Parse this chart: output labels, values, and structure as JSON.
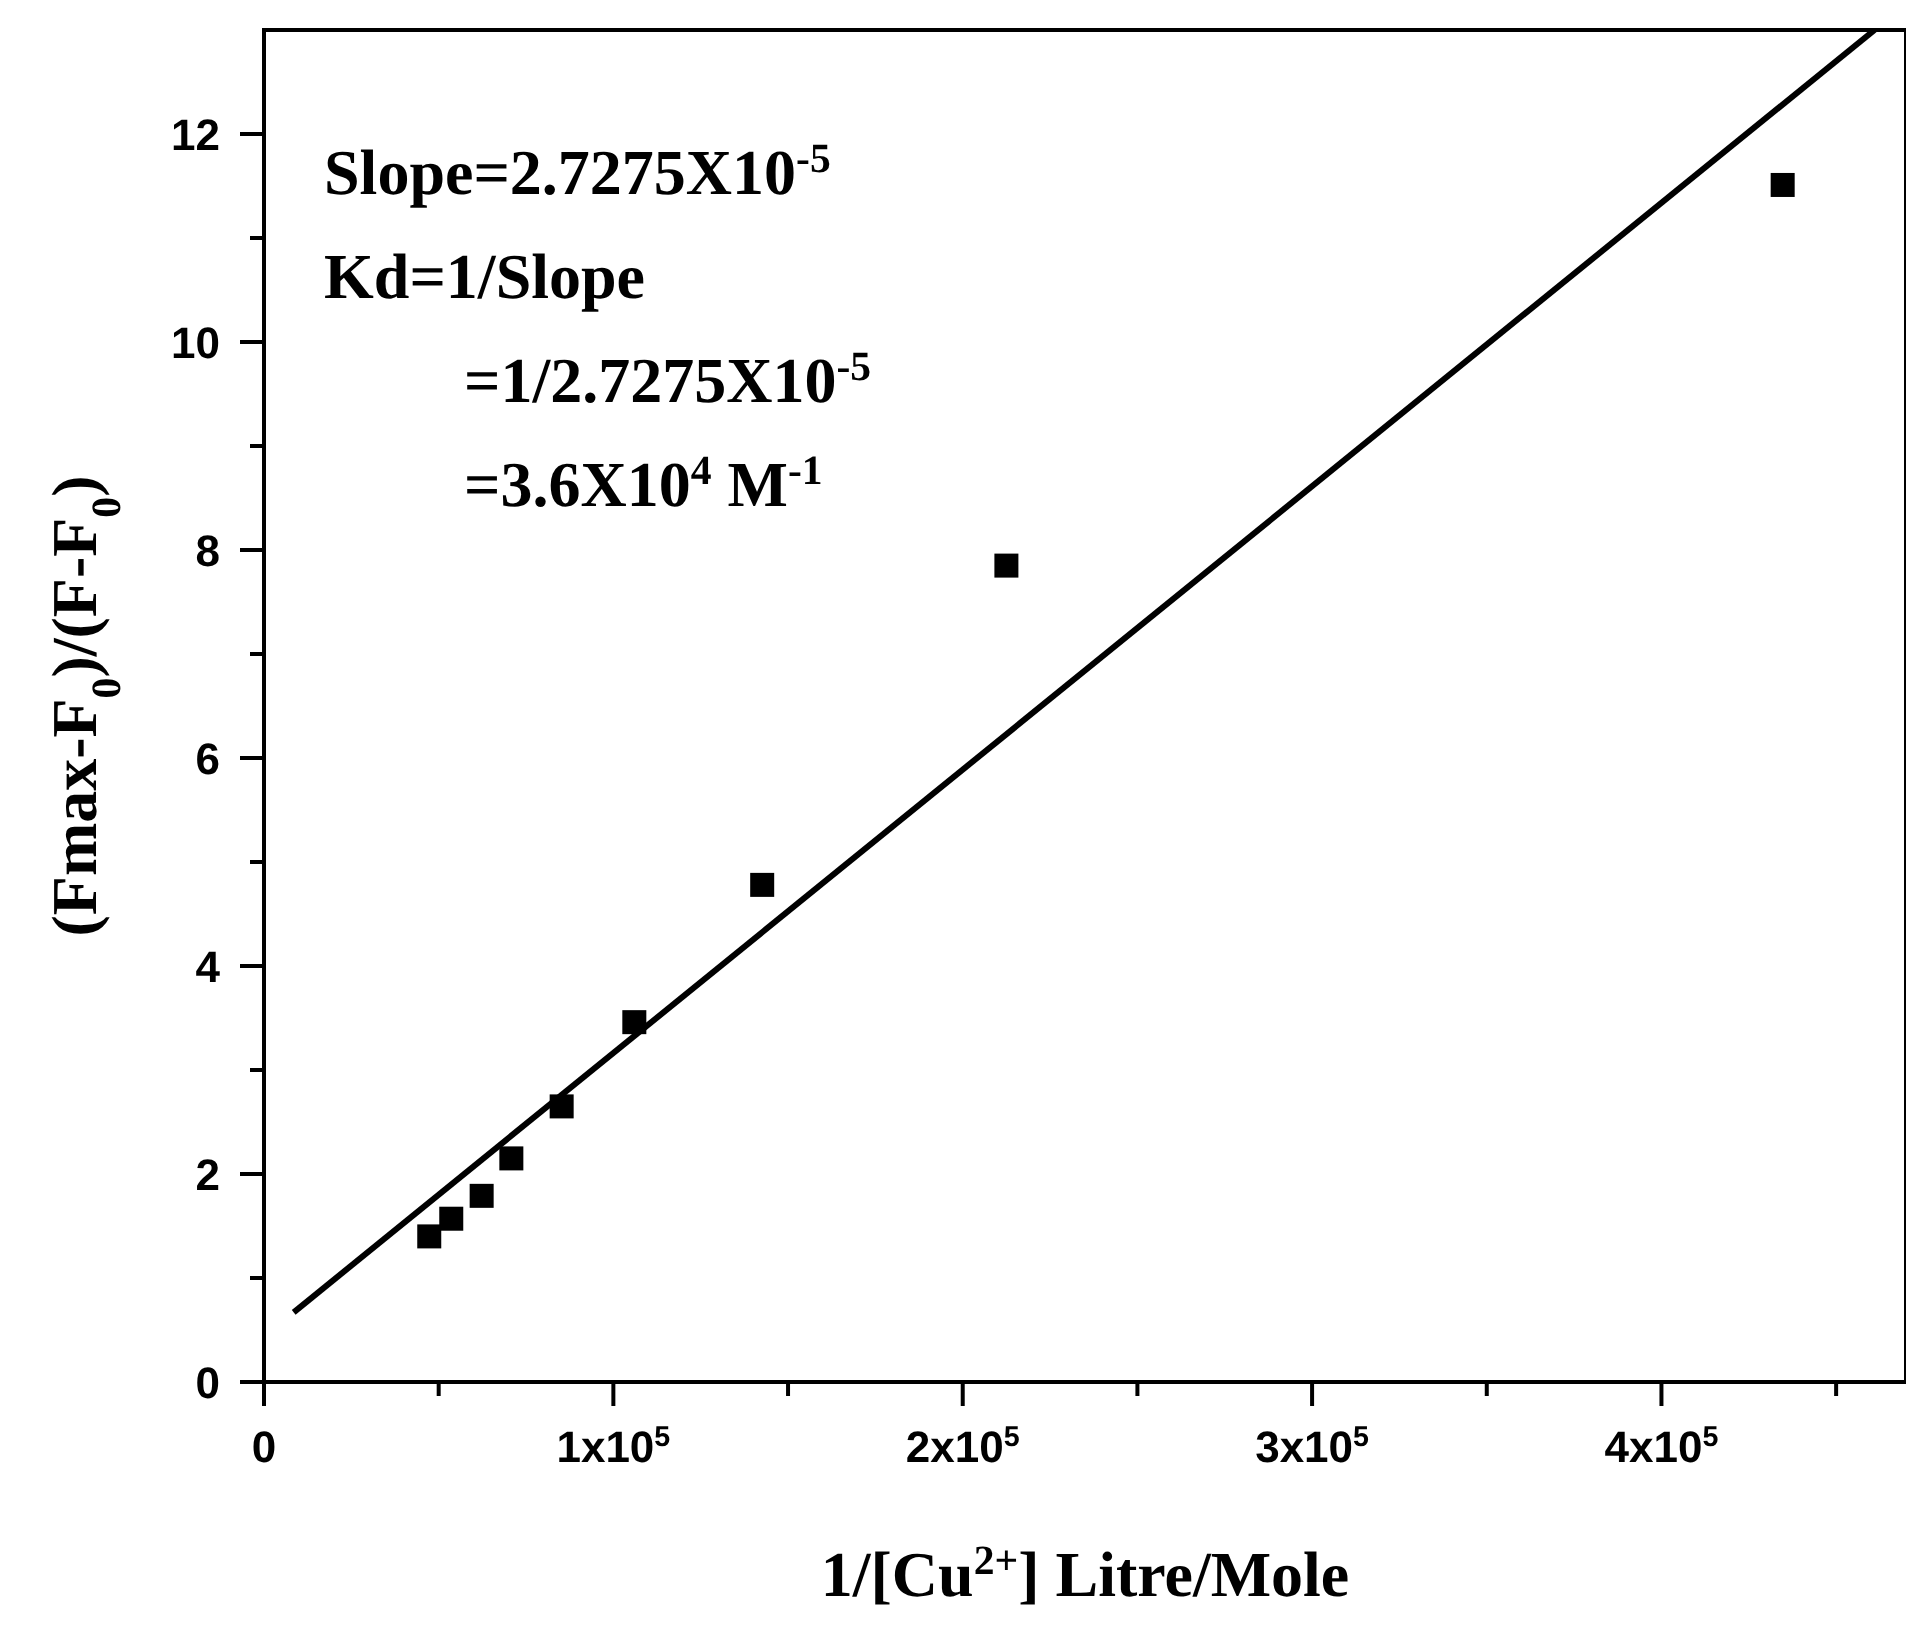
{
  "chart_data": {
    "type": "scatter",
    "xlabel": "1/[Cu$^{2+}$] Litre/Mole",
    "ylabel": "(Fmax-F$_{0}$)/(F-F$_{0}$)",
    "xlim": [
      0,
      470000
    ],
    "ylim": [
      0,
      13
    ],
    "xticks": [
      0,
      {
        "value": 100000,
        "label": "1x10$^{5}$"
      },
      {
        "value": 200000,
        "label": "2x10$^{5}$"
      },
      {
        "value": 300000,
        "label": "3x10$^{5}$"
      },
      {
        "value": 400000,
        "label": "4x10$^{5}$"
      }
    ],
    "yticks": [
      0,
      2,
      4,
      6,
      8,
      10,
      12
    ],
    "grid": false,
    "marker": "square",
    "annotations": [
      "Slope=2.7275X10$^{-5}$",
      "Kd=1/Slope",
      "=1/2.7275X10$^{-5}$",
      "=3.6X10$^{4}$ M$^{-1}$"
    ],
    "series": [
      {
        "color": "#000000",
        "x": [
          47300,
          53600,
          62300,
          70800,
          85200,
          106000,
          142600,
          212500,
          434700
        ],
        "values": [
          1.4,
          1.57,
          1.79,
          2.15,
          2.65,
          3.46,
          4.78,
          7.85,
          11.51
        ]
      },
      {
        "type": "line",
        "color": "#000000",
        "line_style": "solid",
        "marker": "none",
        "x": [
          8500,
          461000
        ],
        "values": [
          0.67,
          13.0
        ]
      }
    ]
  }
}
